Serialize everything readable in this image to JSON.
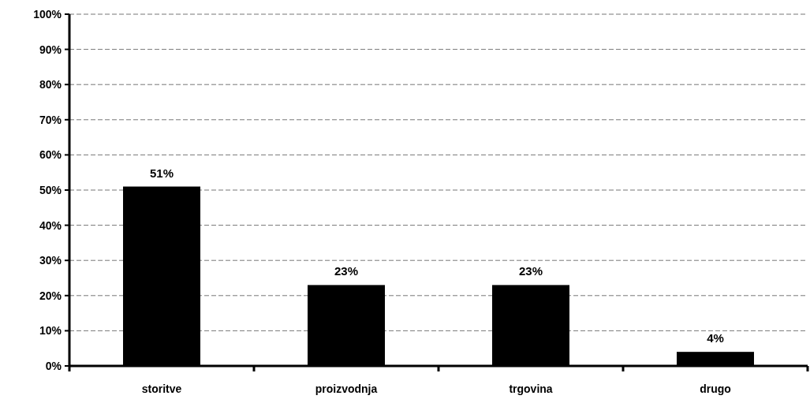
{
  "chart_data": {
    "type": "bar",
    "categories": [
      "storitve",
      "proizvodnja",
      "trgovina",
      "drugo"
    ],
    "values": [
      51,
      23,
      23,
      4
    ],
    "color": "#000000",
    "value_labels": [
      "51%",
      "23%",
      "23%",
      "4%"
    ],
    "ylim": [
      0,
      100
    ],
    "yticks": [
      {
        "value": 0,
        "label": "0%"
      },
      {
        "value": 10,
        "label": "10%"
      },
      {
        "value": 20,
        "label": "20%"
      },
      {
        "value": 30,
        "label": "30%"
      },
      {
        "value": 40,
        "label": "40%"
      },
      {
        "value": 50,
        "label": "50%"
      },
      {
        "value": 60,
        "label": "60%"
      },
      {
        "value": 70,
        "label": "70%"
      },
      {
        "value": 80,
        "label": "80%"
      },
      {
        "value": 90,
        "label": "90%"
      },
      {
        "value": 100,
        "label": "100%"
      }
    ],
    "grid": "y"
  }
}
